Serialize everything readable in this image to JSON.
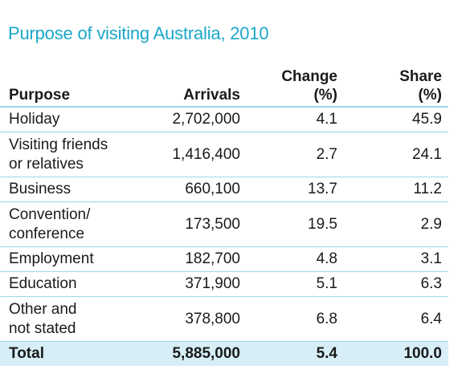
{
  "title": "Purpose of visiting Australia, 2010",
  "columns": {
    "purpose": "Purpose",
    "arrivals": "Arrivals",
    "change": "Change\n(%)",
    "share": "Share\n(%)"
  },
  "rows": [
    {
      "purpose": "Holiday",
      "arrivals": "2,702,000",
      "change": "4.1",
      "share": "45.9"
    },
    {
      "purpose": "Visiting friends\nor relatives",
      "arrivals": "1,416,400",
      "change": "2.7",
      "share": "24.1"
    },
    {
      "purpose": "Business",
      "arrivals": "660,100",
      "change": "13.7",
      "share": "11.2"
    },
    {
      "purpose": "Convention/\nconference",
      "arrivals": "173,500",
      "change": "19.5",
      "share": "2.9"
    },
    {
      "purpose": "Employment",
      "arrivals": "182,700",
      "change": "4.8",
      "share": "3.1"
    },
    {
      "purpose": "Education",
      "arrivals": "371,900",
      "change": "5.1",
      "share": "6.3"
    },
    {
      "purpose": "Other and\nnot stated",
      "arrivals": "378,800",
      "change": "6.8",
      "share": "6.4"
    }
  ],
  "total": {
    "purpose": "Total",
    "arrivals": "5,885,000",
    "change": "5.4",
    "share": "100.0"
  },
  "colors": {
    "title": "#1aa7c9",
    "rule": "#9bd8ea",
    "total_bg": "#d7eef6"
  }
}
